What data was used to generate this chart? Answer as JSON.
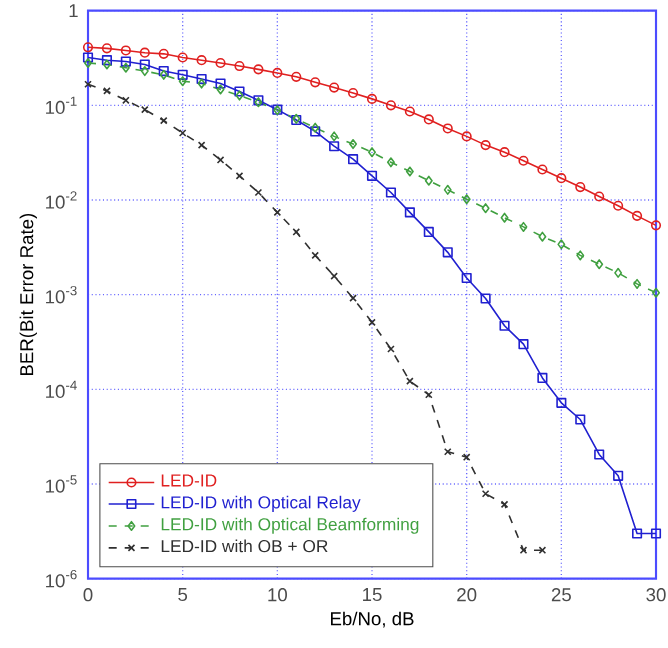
{
  "chart_data": {
    "type": "line",
    "xlabel": "Eb/No, dB",
    "ylabel": "BER(Bit Error Rate)",
    "x": [
      0,
      1,
      2,
      3,
      4,
      5,
      6,
      7,
      8,
      9,
      10,
      11,
      12,
      13,
      14,
      15,
      16,
      17,
      18,
      19,
      20,
      21,
      22,
      23,
      24,
      25,
      26,
      27,
      28,
      29,
      30
    ],
    "series": [
      {
        "name": "LED-ID",
        "color": "#e02020",
        "marker": "circle",
        "line_style": "solid",
        "values": [
          0.41,
          0.4,
          0.38,
          0.36,
          0.35,
          0.32,
          0.3,
          0.28,
          0.26,
          0.24,
          0.22,
          0.2,
          0.175,
          0.154,
          0.135,
          0.117,
          0.1,
          0.086,
          0.071,
          0.057,
          0.047,
          0.038,
          0.032,
          0.026,
          0.021,
          0.017,
          0.0137,
          0.0109,
          0.0087,
          0.0068,
          0.0054
        ]
      },
      {
        "name": "LED-ID with Optical Relay",
        "color": "#2020d0",
        "marker": "square",
        "line_style": "solid",
        "values": [
          0.32,
          0.3,
          0.29,
          0.27,
          0.23,
          0.21,
          0.19,
          0.17,
          0.14,
          0.113,
          0.09,
          0.07,
          0.053,
          0.037,
          0.027,
          0.018,
          0.012,
          0.0074,
          0.0046,
          0.0028,
          0.0015,
          0.00091,
          0.00047,
          0.0003,
          0.000132,
          7.2e-05,
          4.8e-05,
          2.05e-05,
          1.22e-05,
          3e-06,
          3e-06
        ]
      },
      {
        "name": "LED-ID with Optical Beamforming",
        "color": "#40a040",
        "marker": "diamond",
        "line_style": "dashed",
        "values": [
          0.28,
          0.27,
          0.25,
          0.23,
          0.21,
          0.18,
          0.17,
          0.147,
          0.127,
          0.108,
          0.089,
          0.072,
          0.058,
          0.047,
          0.039,
          0.032,
          0.025,
          0.02,
          0.016,
          0.0128,
          0.0102,
          0.0082,
          0.0065,
          0.0052,
          0.0041,
          0.0034,
          0.0026,
          0.0021,
          0.0017,
          0.0013,
          0.00105
        ]
      },
      {
        "name": "LED-ID with OB + OR",
        "color": "#303030",
        "marker": "cross",
        "line_style": "dashed",
        "values": [
          0.167,
          0.142,
          0.113,
          0.09,
          0.069,
          0.051,
          0.038,
          0.0265,
          0.018,
          0.012,
          0.0074,
          0.0046,
          0.0026,
          0.00157,
          0.00092,
          0.00051,
          0.000267,
          0.000122,
          8.77e-05,
          2.19e-05,
          1.92e-05,
          7.9e-06,
          6.1e-06,
          2e-06,
          2e-06,
          null,
          null,
          null,
          null,
          null,
          null
        ]
      }
    ],
    "log": "y",
    "grid": true,
    "legend": "bottom left",
    "xlim": [
      0,
      30
    ],
    "xticks": [
      0,
      5,
      10,
      15,
      20,
      25,
      30
    ],
    "ylim": [
      1e-06,
      1
    ],
    "yticks": [
      {
        "value": 1e-06,
        "label": "10$^{-6}$"
      },
      {
        "value": 1e-05,
        "label": "10$^{-5}$"
      },
      {
        "value": 0.0001,
        "label": "10$^{-4}$"
      },
      {
        "value": 0.001,
        "label": "10$^{-3}$"
      },
      {
        "value": 0.01,
        "label": "10$^{-2}$"
      },
      {
        "value": 0.1,
        "label": "10$^{-1}$"
      },
      {
        "value": 1,
        "label": "1"
      }
    ]
  }
}
